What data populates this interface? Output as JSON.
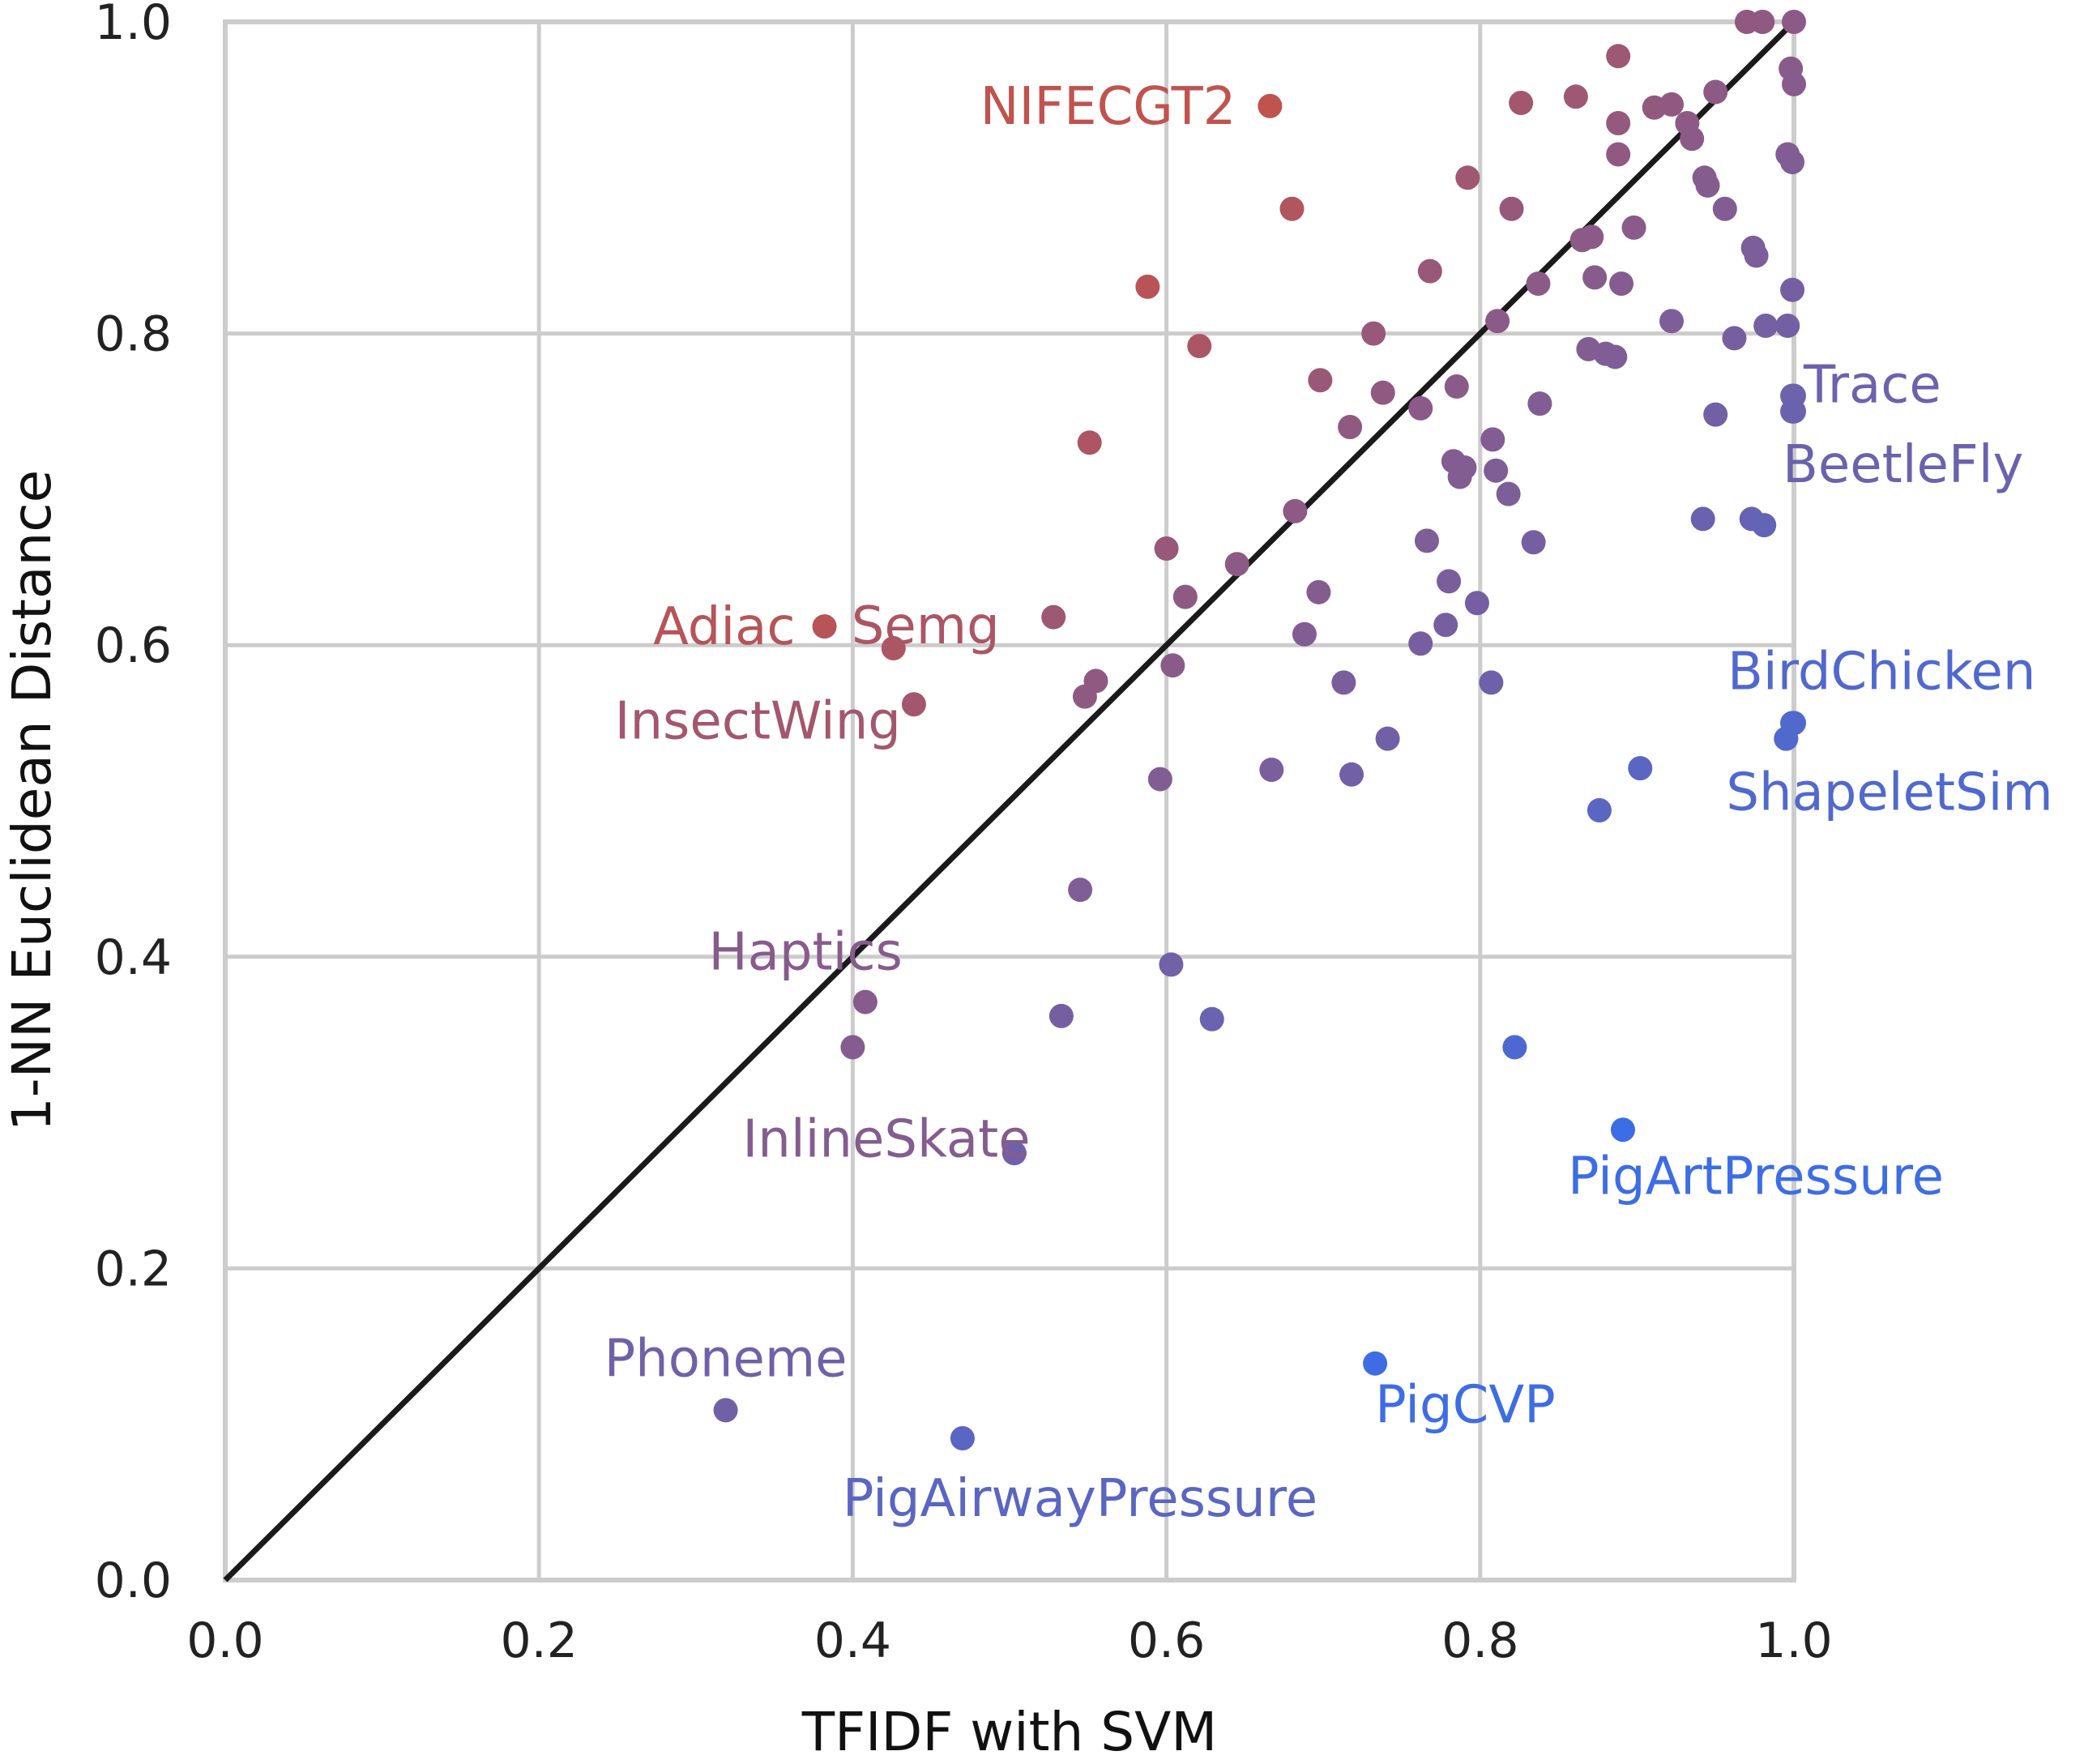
{
  "chart_data": {
    "type": "scatter",
    "xlabel": "TFIDF with SVM",
    "ylabel": "1-NN Euclidean Distance",
    "xlim": [
      0,
      1
    ],
    "ylim": [
      0,
      1
    ],
    "xticks": [
      "0.0",
      "0.2",
      "0.4",
      "0.6",
      "0.8",
      "1.0"
    ],
    "yticks": [
      "0.0",
      "0.2",
      "0.4",
      "0.6",
      "0.8",
      "1.0"
    ],
    "grid": true,
    "reference_line": "y = x",
    "color_scale": {
      "low": "#3a6ee8",
      "mid": "#8c5a86",
      "high": "#ff4a0a"
    },
    "points": [
      [
        0.97,
        1.0
      ],
      [
        0.98,
        1.0
      ],
      [
        1.0,
        1.0
      ],
      [
        0.998,
        0.97
      ],
      [
        1.0,
        0.96
      ],
      [
        0.888,
        0.978
      ],
      [
        0.826,
        0.948
      ],
      [
        0.861,
        0.952
      ],
      [
        0.888,
        0.935
      ],
      [
        0.911,
        0.945
      ],
      [
        0.922,
        0.947
      ],
      [
        0.932,
        0.935
      ],
      [
        0.95,
        0.955
      ],
      [
        0.935,
        0.925
      ],
      [
        0.888,
        0.915
      ],
      [
        0.996,
        0.915
      ],
      [
        0.999,
        0.91
      ],
      [
        0.943,
        0.9
      ],
      [
        0.945,
        0.895
      ],
      [
        0.792,
        0.9
      ],
      [
        0.82,
        0.88
      ],
      [
        0.956,
        0.88
      ],
      [
        0.898,
        0.868
      ],
      [
        0.865,
        0.86
      ],
      [
        0.871,
        0.862
      ],
      [
        0.974,
        0.855
      ],
      [
        0.976,
        0.85
      ],
      [
        0.768,
        0.84
      ],
      [
        0.873,
        0.836
      ],
      [
        0.89,
        0.832
      ],
      [
        0.837,
        0.832
      ],
      [
        0.999,
        0.828
      ],
      [
        0.922,
        0.808
      ],
      [
        0.811,
        0.808
      ],
      [
        0.982,
        0.805
      ],
      [
        0.996,
        0.805
      ],
      [
        0.732,
        0.8
      ],
      [
        0.962,
        0.797
      ],
      [
        0.869,
        0.79
      ],
      [
        0.88,
        0.787
      ],
      [
        0.886,
        0.785
      ],
      [
        0.698,
        0.77
      ],
      [
        0.785,
        0.766
      ],
      [
        0.738,
        0.762
      ],
      [
        0.999,
        0.76
      ],
      [
        0.838,
        0.755
      ],
      [
        0.762,
        0.752
      ],
      [
        0.95,
        0.748
      ],
      [
        0.999,
        0.75
      ],
      [
        0.717,
        0.74
      ],
      [
        0.808,
        0.732
      ],
      [
        0.783,
        0.718
      ],
      [
        0.79,
        0.714
      ],
      [
        0.787,
        0.708
      ],
      [
        0.81,
        0.712
      ],
      [
        0.818,
        0.697
      ],
      [
        0.682,
        0.686
      ],
      [
        0.942,
        0.681
      ],
      [
        0.973,
        0.681
      ],
      [
        0.981,
        0.677
      ],
      [
        0.766,
        0.667
      ],
      [
        0.834,
        0.666
      ],
      [
        0.6,
        0.662
      ],
      [
        0.645,
        0.652
      ],
      [
        0.78,
        0.641
      ],
      [
        0.697,
        0.634
      ],
      [
        0.612,
        0.631
      ],
      [
        0.798,
        0.627
      ],
      [
        0.778,
        0.613
      ],
      [
        0.688,
        0.607
      ],
      [
        0.762,
        0.601
      ],
      [
        0.604,
        0.587
      ],
      [
        0.713,
        0.576
      ],
      [
        0.807,
        0.576
      ],
      [
        0.741,
        0.54
      ],
      [
        0.902,
        0.521
      ],
      [
        0.667,
        0.52
      ],
      [
        0.718,
        0.517
      ],
      [
        0.596,
        0.514
      ],
      [
        0.876,
        0.494
      ],
      [
        0.545,
        0.443
      ],
      [
        0.603,
        0.395
      ],
      [
        0.533,
        0.362
      ],
      [
        0.629,
        0.36
      ],
      [
        0.822,
        0.342
      ],
      [
        0.503,
        0.274
      ],
      [
        0.548,
        0.567
      ],
      [
        0.555,
        0.577
      ],
      [
        0.588,
        0.83
      ],
      [
        0.621,
        0.792
      ],
      [
        0.68,
        0.88
      ],
      [
        0.528,
        0.618
      ],
      [
        0.551,
        0.73
      ],
      [
        0.995,
        0.54
      ],
      [
        0.999,
        0.55
      ]
    ],
    "labeled_points": [
      {
        "label": "NIFECGT2",
        "x": 0.666,
        "y": 0.946
      },
      {
        "label": "Adiac",
        "x": 0.382,
        "y": 0.612
      },
      {
        "label": "Semg",
        "x": 0.426,
        "y": 0.598
      },
      {
        "label": "InsectWing",
        "x": 0.439,
        "y": 0.562
      },
      {
        "label": "Haptics",
        "x": 0.408,
        "y": 0.371
      },
      {
        "label": "InlineSkate",
        "x": 0.4,
        "y": 0.342
      },
      {
        "label": "Phoneme",
        "x": 0.319,
        "y": 0.109
      },
      {
        "label": "PigAirwayPressure",
        "x": 0.47,
        "y": 0.091
      },
      {
        "label": "PigCVP",
        "x": 0.733,
        "y": 0.139
      },
      {
        "label": "PigArtPressure",
        "x": 0.891,
        "y": 0.289
      },
      {
        "label": "BirdChicken",
        "x": 1.0,
        "y": 0.55
      },
      {
        "label": "ShapeletSim",
        "x": 0.995,
        "y": 0.54
      },
      {
        "label": "Trace",
        "x": 1.0,
        "y": 0.76
      },
      {
        "label": "BeetleFly",
        "x": 1.0,
        "y": 0.75
      }
    ]
  }
}
